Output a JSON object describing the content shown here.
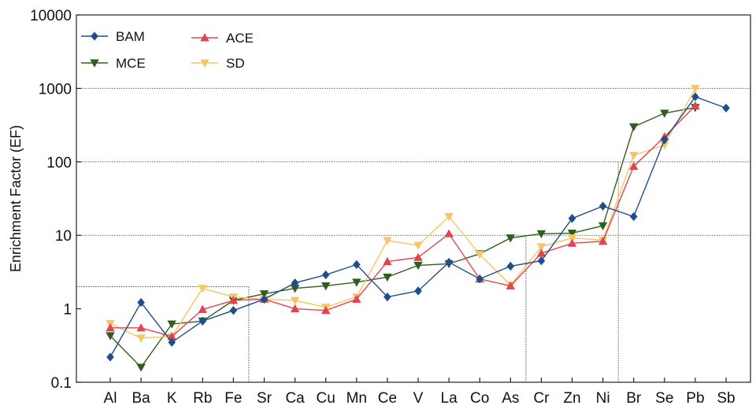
{
  "chart_data": {
    "type": "line",
    "title": "",
    "xlabel": "",
    "ylabel": "Enrichment Factor (EF)",
    "yscale": "log",
    "ylim": [
      0.1,
      10000
    ],
    "yticks": [
      0.1,
      1,
      10,
      100,
      1000,
      10000
    ],
    "ytick_labels": [
      "0.1",
      "1",
      "10",
      "100",
      "1000",
      "10000"
    ],
    "grid": "dotted horizontal lines at 10, 100, 1000",
    "legend_position": "top-left",
    "categories": [
      "Al",
      "Ba",
      "K",
      "Rb",
      "Fe",
      "Sr",
      "Ca",
      "Cu",
      "Mn",
      "Ce",
      "V",
      "La",
      "Co",
      "As",
      "Cr",
      "Zn",
      "Ni",
      "Br",
      "Se",
      "Pb",
      "Sb"
    ],
    "series": [
      {
        "name": "BAM",
        "color": "#1f4e8c",
        "marker": "diamond",
        "values": [
          0.22,
          1.22,
          0.35,
          0.68,
          0.95,
          1.35,
          2.25,
          2.9,
          4.0,
          1.45,
          1.75,
          4.3,
          2.55,
          3.8,
          4.5,
          17,
          25,
          18,
          200,
          770,
          540
        ]
      },
      {
        "name": "ACE",
        "color": "#e0464f",
        "marker": "triangle-up",
        "values": [
          0.55,
          0.55,
          0.42,
          0.98,
          1.3,
          1.35,
          1.0,
          0.95,
          1.35,
          4.4,
          5.0,
          10.5,
          2.55,
          2.05,
          5.7,
          7.8,
          8.3,
          87,
          220,
          580,
          null
        ]
      },
      {
        "name": "MCE",
        "color": "#2f5e1e",
        "marker": "triangle-down",
        "values": [
          0.43,
          0.16,
          0.62,
          0.68,
          1.3,
          1.6,
          1.9,
          2.05,
          2.3,
          2.7,
          3.9,
          4.1,
          5.6,
          9.2,
          10.5,
          10.7,
          13.5,
          300,
          460,
          550,
          null
        ]
      },
      {
        "name": "SD",
        "color": "#f6c565",
        "marker": "triangle-down",
        "values": [
          0.63,
          0.4,
          0.42,
          1.9,
          1.45,
          1.35,
          1.3,
          1.05,
          1.45,
          8.5,
          7.3,
          18,
          5.5,
          2.1,
          7.0,
          9.2,
          8.6,
          123,
          170,
          1000,
          null
        ]
      }
    ],
    "reference_lines": [
      {
        "y": 2,
        "x_to_category": "Fe"
      },
      {
        "x_after_category": "Fe",
        "y_to": 2
      },
      {
        "x_after_category": "As",
        "y_to": 10
      },
      {
        "x_after_category": "Ni",
        "y_to": 100
      }
    ]
  }
}
